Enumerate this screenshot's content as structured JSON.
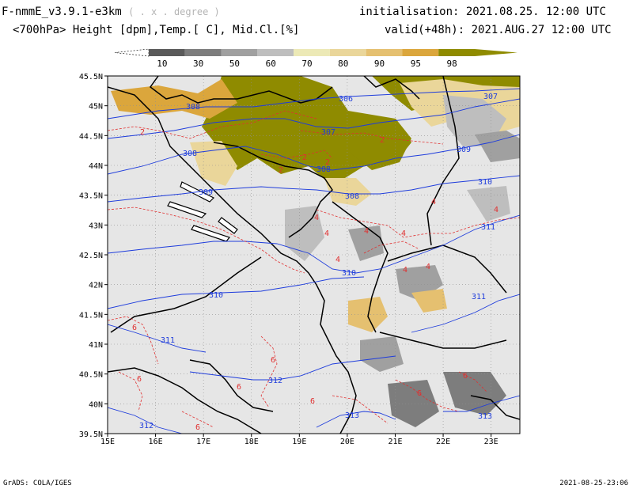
{
  "header": {
    "model": "F-nmmE_v3.9.1-e3km",
    "resolution": "( . x . degree )",
    "level": "<700hPa>",
    "fields": "Height [dpm],Temp.[ C], Mid.Cl.[%]",
    "init_label": "initialisation:",
    "init_value": "2021.08.25.  12:00 UTC",
    "valid_label": "valid(+48h):",
    "valid_value": "2021.AUG.27 12:00 UTC"
  },
  "colorbar": {
    "labels": [
      "10",
      "30",
      "50",
      "60",
      "70",
      "80",
      "90",
      "95",
      "98"
    ],
    "colors": [
      "#5a5a5a",
      "#7d7d7d",
      "#a0a0a0",
      "#bebebe",
      "#ece9b6",
      "#ead69a",
      "#e5c070",
      "#dba63c",
      "#8f8b00"
    ]
  },
  "map": {
    "background": "#e6e6e6",
    "lon_labels": [
      "15E",
      "16E",
      "17E",
      "18E",
      "19E",
      "20E",
      "21E",
      "22E",
      "23E"
    ],
    "lat_labels": [
      "45.5N",
      "45N",
      "44.5N",
      "44N",
      "43.5N",
      "43N",
      "42.5N",
      "42N",
      "41.5N",
      "41N",
      "40.5N",
      "40N",
      "39.5N"
    ],
    "height_contour_color": "#1e3cdc",
    "temp_contour_color": "#e03030",
    "height_labels": [
      "306",
      "307",
      "308",
      "307",
      "308",
      "308",
      "309",
      "308",
      "309",
      "310",
      "310",
      "311",
      "310",
      "311",
      "311",
      "312",
      "313",
      "313",
      "312"
    ],
    "temp_labels": [
      "2",
      "2",
      "2",
      "2",
      "2",
      "4",
      "4",
      "4",
      "4",
      "4",
      "4",
      "4",
      "4",
      "4",
      "6",
      "6",
      "6",
      "6",
      "6",
      "6",
      "6",
      "6"
    ]
  },
  "footer": {
    "left": "GrADS: COLA/IGES",
    "right": "2021-08-25-23:06"
  }
}
